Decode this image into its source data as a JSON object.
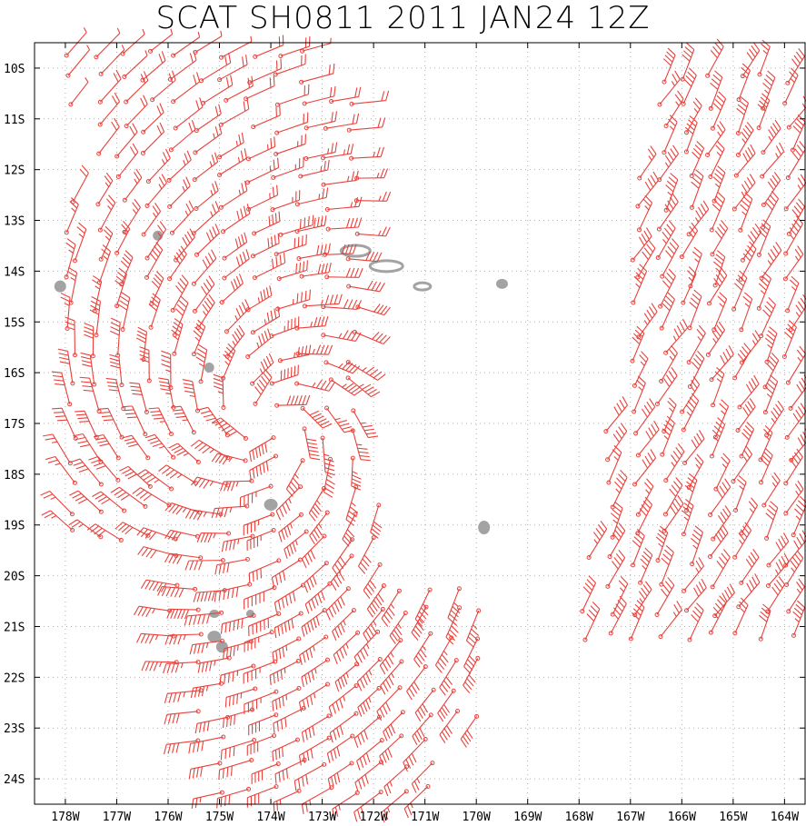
{
  "title": "SCAT SH0811 2011 JAN24 12Z",
  "axes": {
    "lat_labels": [
      "10S",
      "11S",
      "12S",
      "13S",
      "14S",
      "15S",
      "16S",
      "17S",
      "18S",
      "19S",
      "20S",
      "21S",
      "22S",
      "23S",
      "24S"
    ],
    "lon_labels": [
      "178W",
      "177W",
      "176W",
      "175W",
      "174W",
      "173W",
      "172W",
      "171W",
      "170W",
      "169W",
      "168W",
      "167W",
      "166W",
      "165W",
      "164W"
    ],
    "lat_range": [
      -24.5,
      -9.5
    ],
    "lon_range": [
      -178.6,
      -163.6
    ],
    "grid": "dotted"
  },
  "colors": {
    "wind_barb": "#e8413b",
    "land": "#a3a3a3",
    "grid": "#b0b0b0",
    "frame": "#000000"
  },
  "chart_data": {
    "type": "wind-barb-map",
    "title": "SCAT SH0811 2011 JAN24 12Z",
    "islands": [
      {
        "lon": -172.35,
        "lat": -13.6
      },
      {
        "lon": -171.75,
        "lat": -13.9
      },
      {
        "lon": -171.05,
        "lat": -14.3
      },
      {
        "lon": -169.5,
        "lat": -14.25
      },
      {
        "lon": -178.1,
        "lat": -14.3
      },
      {
        "lon": -176.2,
        "lat": -13.3
      },
      {
        "lon": -175.2,
        "lat": -15.9
      },
      {
        "lon": -174.0,
        "lat": -18.6
      },
      {
        "lon": -169.85,
        "lat": -19.05
      },
      {
        "lon": -175.1,
        "lat": -20.75
      },
      {
        "lon": -174.4,
        "lat": -20.75
      },
      {
        "lon": -175.1,
        "lat": -21.2
      },
      {
        "lon": -174.95,
        "lat": -21.4
      }
    ]
  }
}
